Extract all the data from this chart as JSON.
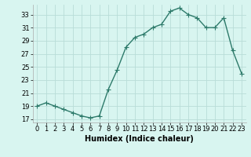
{
  "x": [
    0,
    1,
    2,
    3,
    4,
    5,
    6,
    7,
    8,
    9,
    10,
    11,
    12,
    13,
    14,
    15,
    16,
    17,
    18,
    19,
    20,
    21,
    22,
    23
  ],
  "y": [
    19,
    19.5,
    19,
    18.5,
    18,
    17.5,
    17.2,
    17.5,
    21.5,
    24.5,
    28,
    29.5,
    30,
    31,
    31.5,
    33.5,
    34,
    33,
    32.5,
    31,
    31,
    32.5,
    27.5,
    24
  ],
  "line_color": "#2d7a6a",
  "marker": "+",
  "marker_size": 4,
  "bg_color": "#d8f5f0",
  "grid_color": "#b8ddd8",
  "xlabel": "Humidex (Indice chaleur)",
  "ylim": [
    16.5,
    34.5
  ],
  "yticks": [
    17,
    19,
    21,
    23,
    25,
    27,
    29,
    31,
    33
  ],
  "xticks": [
    0,
    1,
    2,
    3,
    4,
    5,
    6,
    7,
    8,
    9,
    10,
    11,
    12,
    13,
    14,
    15,
    16,
    17,
    18,
    19,
    20,
    21,
    22,
    23
  ],
  "xlabel_fontsize": 7,
  "tick_fontsize": 6,
  "line_width": 1.0
}
